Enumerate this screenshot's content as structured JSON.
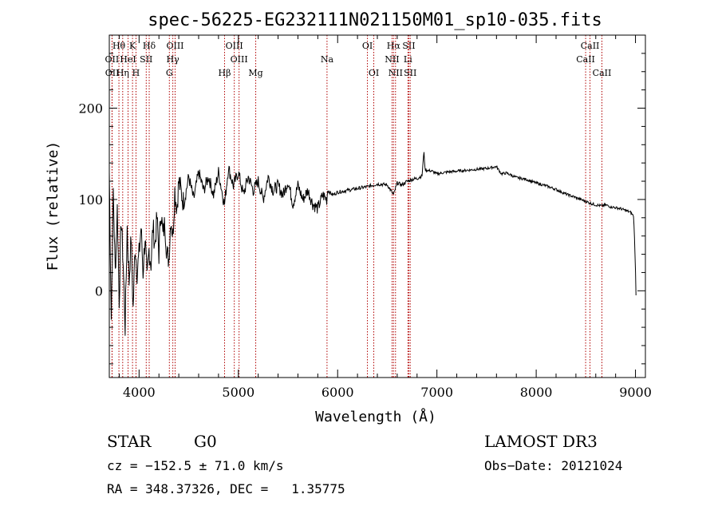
{
  "chart_data": {
    "type": "line",
    "title": "spec-56225-EG232111N021150M01_sp10-035.fits",
    "xlabel": "Wavelength (Å)",
    "ylabel": "Flux (relative)",
    "xlim": [
      3700,
      9100
    ],
    "ylim": [
      -95,
      280
    ],
    "x_ticks": [
      4000,
      5000,
      6000,
      7000,
      8000,
      9000
    ],
    "x_tick_labels": [
      "4000",
      "5000",
      "6000",
      "7000",
      "8000",
      "9000"
    ],
    "y_ticks": [
      0,
      100,
      200
    ],
    "y_tick_labels": [
      "0",
      "100",
      "200"
    ],
    "series": [
      {
        "name": "spectrum",
        "x": [
          3700,
          3720,
          3740,
          3760,
          3780,
          3800,
          3820,
          3840,
          3860,
          3880,
          3900,
          3920,
          3940,
          3960,
          3980,
          4000,
          4020,
          4040,
          4060,
          4080,
          4100,
          4120,
          4140,
          4160,
          4180,
          4200,
          4220,
          4240,
          4260,
          4280,
          4300,
          4320,
          4340,
          4360,
          4380,
          4400,
          4450,
          4500,
          4550,
          4600,
          4650,
          4700,
          4750,
          4800,
          4850,
          4861,
          4900,
          4950,
          5000,
          5050,
          5100,
          5150,
          5200,
          5250,
          5300,
          5350,
          5400,
          5450,
          5500,
          5550,
          5600,
          5650,
          5700,
          5750,
          5800,
          5850,
          5890,
          5900,
          5950,
          6000,
          6100,
          6200,
          6300,
          6400,
          6500,
          6563,
          6600,
          6650,
          6700,
          6750,
          6800,
          6850,
          6870,
          6880,
          6900,
          6950,
          7000,
          7100,
          7200,
          7300,
          7400,
          7500,
          7600,
          7650,
          7700,
          7800,
          7900,
          8000,
          8100,
          8200,
          8300,
          8400,
          8498,
          8542,
          8600,
          8662,
          8700,
          8750,
          8800,
          8850,
          8900,
          8950,
          8980,
          8990,
          9000,
          9005
        ],
        "y": [
          130,
          -30,
          110,
          20,
          90,
          -10,
          80,
          30,
          -40,
          70,
          10,
          60,
          -20,
          50,
          20,
          40,
          70,
          20,
          60,
          10,
          45,
          30,
          70,
          50,
          80,
          40,
          90,
          60,
          75,
          40,
          35,
          80,
          60,
          110,
          90,
          120,
          95,
          125,
          100,
          130,
          110,
          125,
          105,
          130,
          100,
          95,
          135,
          115,
          130,
          105,
          125,
          110,
          120,
          100,
          125,
          110,
          115,
          105,
          120,
          95,
          115,
          100,
          110,
          95,
          90,
          105,
          100,
          110,
          105,
          108,
          110,
          112,
          114,
          117,
          116,
          105,
          118,
          116,
          120,
          122,
          123,
          126,
          153,
          133,
          132,
          131,
          128,
          130,
          131,
          132,
          133,
          134,
          136,
          128,
          129,
          124,
          122,
          118,
          115,
          111,
          106,
          102,
          98,
          96,
          94,
          93,
          94,
          92,
          91,
          90,
          88,
          86,
          82,
          60,
          20,
          -5
        ]
      }
    ],
    "line_markers": [
      {
        "name": "Hθ",
        "x": 3797,
        "row": 1
      },
      {
        "name": "K",
        "x": 3934,
        "row": 1
      },
      {
        "name": "Hδ",
        "x": 4102,
        "row": 1
      },
      {
        "name": "OIII",
        "x": 4363,
        "row": 1
      },
      {
        "name": "OIII",
        "x": 4959,
        "row": 1
      },
      {
        "name": "OI",
        "x": 6300,
        "row": 1
      },
      {
        "name": "Hα",
        "x": 6563,
        "row": 1
      },
      {
        "name": "SII",
        "x": 6717,
        "row": 1
      },
      {
        "name": "CaII",
        "x": 8542,
        "row": 1
      },
      {
        "name": "OII",
        "x": 3727,
        "row": 2
      },
      {
        "name": "HeI",
        "x": 3889,
        "row": 2
      },
      {
        "name": "SII",
        "x": 4072,
        "row": 2
      },
      {
        "name": "Hγ",
        "x": 4340,
        "row": 2
      },
      {
        "name": "OIII",
        "x": 5007,
        "row": 2
      },
      {
        "name": "Na",
        "x": 5893,
        "row": 2
      },
      {
        "name": "NII",
        "x": 6548,
        "row": 2
      },
      {
        "name": "Li",
        "x": 6708,
        "row": 2
      },
      {
        "name": "CaII",
        "x": 8498,
        "row": 2
      },
      {
        "name": "OII",
        "x": 3729,
        "row": 3
      },
      {
        "name": "Hη",
        "x": 3835,
        "row": 3
      },
      {
        "name": "H",
        "x": 3969,
        "row": 3
      },
      {
        "name": "G",
        "x": 4305,
        "row": 3
      },
      {
        "name": "Hβ",
        "x": 4861,
        "row": 3
      },
      {
        "name": "Mg",
        "x": 5175,
        "row": 3
      },
      {
        "name": "OI",
        "x": 6364,
        "row": 3
      },
      {
        "name": "NII",
        "x": 6583,
        "row": 3
      },
      {
        "name": "SII",
        "x": 6731,
        "row": 3
      },
      {
        "name": "CaII",
        "x": 8662,
        "row": 3
      }
    ],
    "marker_color": "#b00000"
  },
  "info": {
    "class": "STAR",
    "subclass": "G0",
    "survey": "LAMOST DR3",
    "cz": "cz = −152.5 ± 71.0 km/s",
    "obs_date": "Obs−Date: 20121024",
    "coords": "RA = 348.37326, DEC =   1.35775"
  }
}
